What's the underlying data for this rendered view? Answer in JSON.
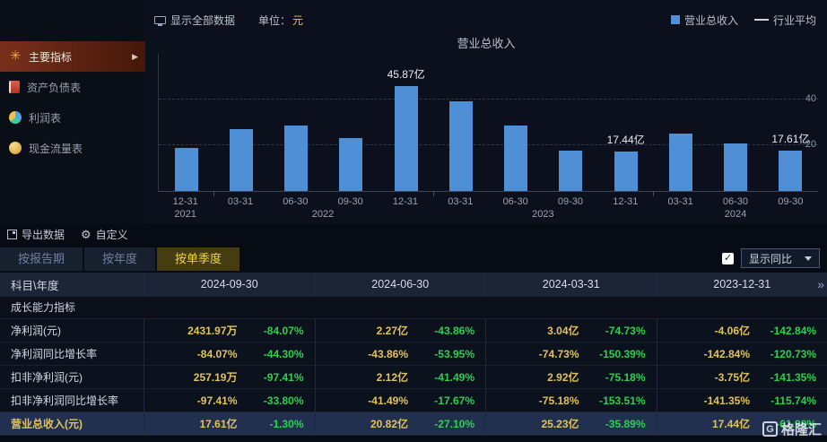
{
  "topbar": {
    "show_all": "显示全部数据",
    "unit_prefix": "单位：",
    "unit_value": "元",
    "legend": [
      {
        "label": "营业总收入",
        "swatch": "bar"
      },
      {
        "label": "行业平均",
        "swatch": "line"
      }
    ]
  },
  "sidebar": {
    "items": [
      {
        "label": "主要指标",
        "icon": "asterisk-icon",
        "active": true
      },
      {
        "label": "资产负债表",
        "icon": "book-icon",
        "active": false
      },
      {
        "label": "利润表",
        "icon": "pie-icon",
        "active": false
      },
      {
        "label": "现金流量表",
        "icon": "coin-icon",
        "active": false
      }
    ]
  },
  "chart_data": {
    "type": "bar",
    "title": "营业总收入",
    "x": [
      "12-31",
      "03-31",
      "06-30",
      "09-30",
      "12-31",
      "03-31",
      "06-30",
      "09-30",
      "12-31",
      "03-31",
      "06-30",
      "09-30"
    ],
    "year_groups": [
      {
        "label": "2021",
        "count": 1
      },
      {
        "label": "2022",
        "count": 4
      },
      {
        "label": "2023",
        "count": 4
      },
      {
        "label": "2024",
        "count": 3
      }
    ],
    "values": [
      19.0,
      27.0,
      28.5,
      23.0,
      45.87,
      39.35,
      28.56,
      17.84,
      17.44,
      25.23,
      20.82,
      17.61
    ],
    "annotations": [
      {
        "index": 4,
        "text": "45.87亿"
      },
      {
        "index": 8,
        "text": "17.44亿"
      },
      {
        "index": 11,
        "text": "17.61亿"
      }
    ],
    "ylim": [
      0,
      60
    ],
    "yticks": [
      20,
      40
    ],
    "bar_color": "#4e8fd5",
    "grid": true,
    "legend_position": "top-right"
  },
  "toolbar": {
    "export_label": "导出数据",
    "customize_label": "自定义"
  },
  "tabs": [
    {
      "label": "按报告期",
      "active": false
    },
    {
      "label": "按年度",
      "active": false
    },
    {
      "label": "按单季度",
      "active": true
    }
  ],
  "controls": {
    "yoy_label": "显示同比",
    "yoy_checked": true
  },
  "table": {
    "corner_header": "科目\\年度",
    "columns": [
      "2024-09-30",
      "2024-06-30",
      "2024-03-31",
      "2023-12-31"
    ],
    "more_indicator": "»",
    "section_label": "成长能力指标",
    "rows": [
      {
        "label": "净利润(元)",
        "highlight": false,
        "cells": [
          {
            "value": "2431.97万",
            "yoy": "-84.07%"
          },
          {
            "value": "2.27亿",
            "yoy": "-43.86%"
          },
          {
            "value": "3.04亿",
            "yoy": "-74.73%"
          },
          {
            "value": "-4.06亿",
            "yoy": "-142.84%"
          }
        ]
      },
      {
        "label": "净利润同比增长率",
        "highlight": false,
        "cells": [
          {
            "value": "-84.07%",
            "yoy": "-44.30%"
          },
          {
            "value": "-43.86%",
            "yoy": "-53.95%"
          },
          {
            "value": "-74.73%",
            "yoy": "-150.39%"
          },
          {
            "value": "-142.84%",
            "yoy": "-120.73%"
          }
        ]
      },
      {
        "label": "扣非净利润(元)",
        "highlight": false,
        "cells": [
          {
            "value": "257.19万",
            "yoy": "-97.41%"
          },
          {
            "value": "2.12亿",
            "yoy": "-41.49%"
          },
          {
            "value": "2.92亿",
            "yoy": "-75.18%"
          },
          {
            "value": "-3.75亿",
            "yoy": "-141.35%"
          }
        ]
      },
      {
        "label": "扣非净利润同比增长率",
        "highlight": false,
        "cells": [
          {
            "value": "-97.41%",
            "yoy": "-33.80%"
          },
          {
            "value": "-41.49%",
            "yoy": "-17.67%"
          },
          {
            "value": "-75.18%",
            "yoy": "-153.51%"
          },
          {
            "value": "-141.35%",
            "yoy": "-115.74%"
          }
        ]
      },
      {
        "label": "营业总收入(元)",
        "highlight": true,
        "cells": [
          {
            "value": "17.61亿",
            "yoy": "-1.30%"
          },
          {
            "value": "20.82亿",
            "yoy": "-27.10%"
          },
          {
            "value": "25.23亿",
            "yoy": "-35.89%"
          },
          {
            "value": "17.44亿",
            "yoy": "-61.98%"
          }
        ]
      }
    ]
  },
  "icons": {
    "gear": "⚙",
    "asterisk": "✳",
    "arrow_right": "▶",
    "check": "✓"
  },
  "watermark": {
    "logo": "G",
    "text": "格隆汇"
  },
  "colors": {
    "accent_bar": "#4e8fd5",
    "value_yellow": "#e2c25c",
    "yoy_green": "#2fcf4e",
    "tab_active": "#f3d244"
  }
}
